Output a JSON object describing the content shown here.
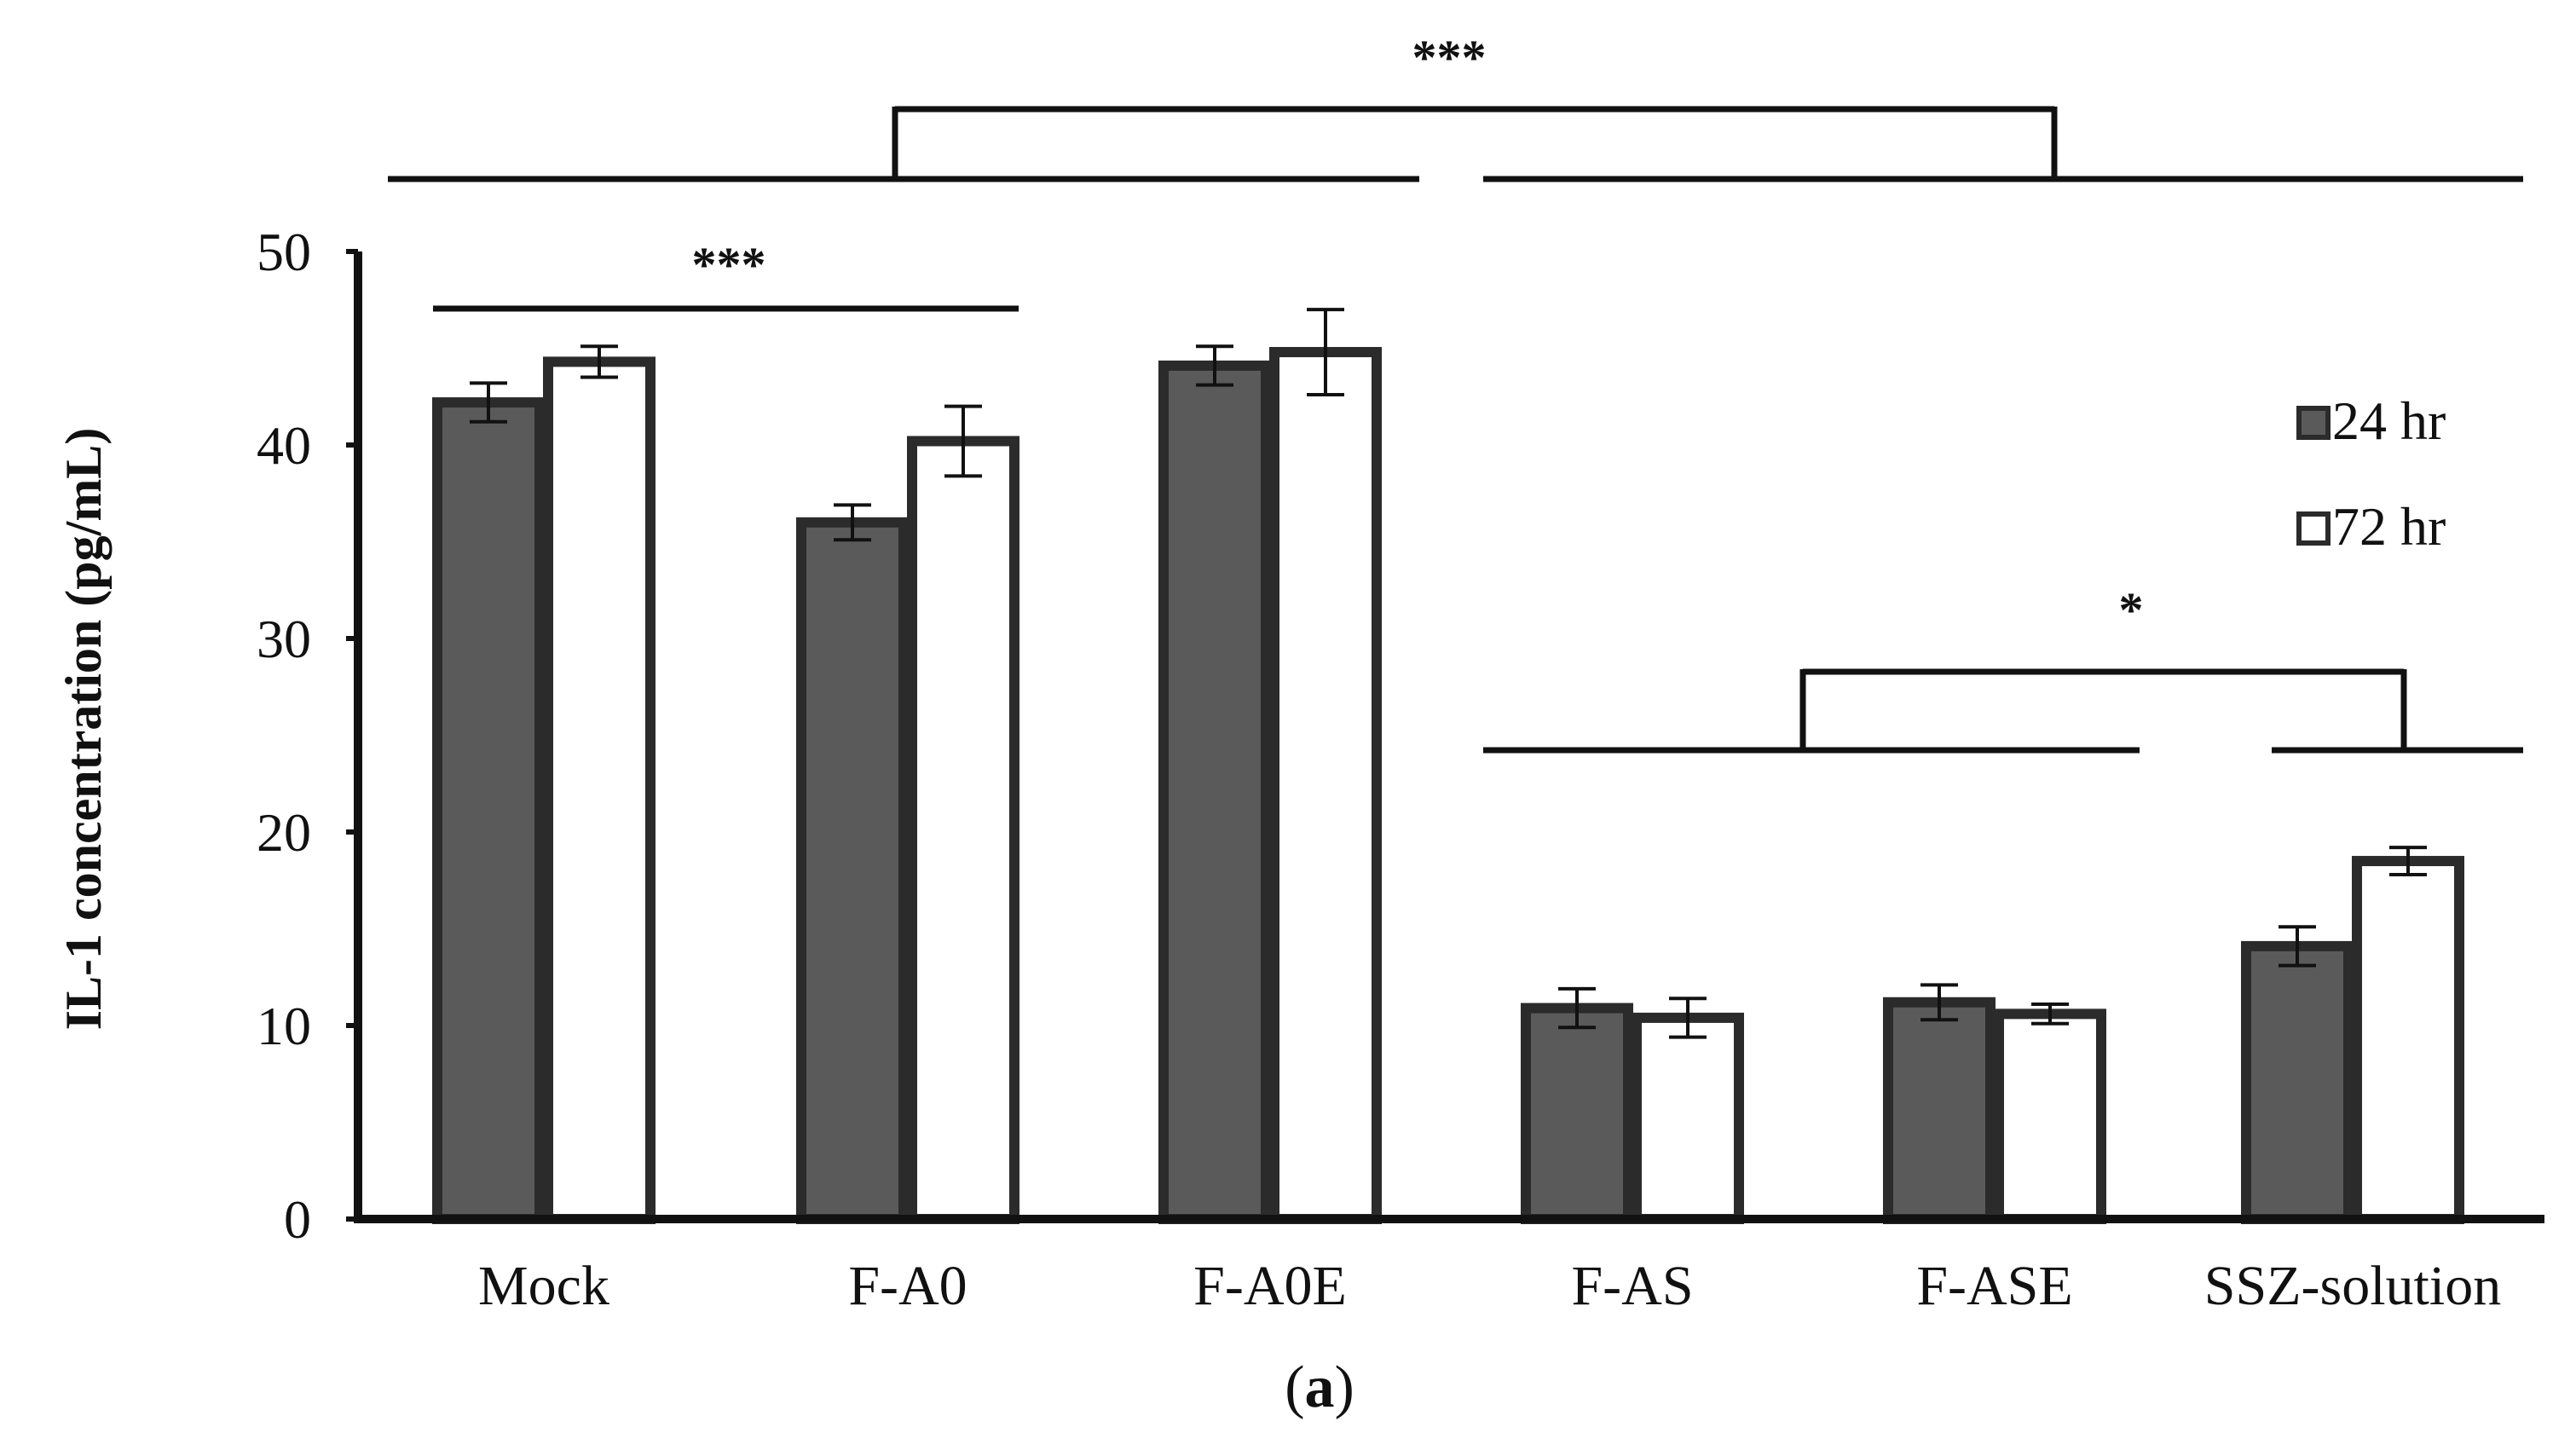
{
  "chart_data": {
    "type": "bar",
    "title": "",
    "panel_label": "a",
    "ylabel": "IL-1 concentration (pg/mL)",
    "xlabel": "",
    "ylim": [
      0,
      50
    ],
    "yticks": [
      0,
      10,
      20,
      30,
      40,
      50
    ],
    "categories": [
      "Mock",
      "F-A0",
      "F-A0E",
      "F-AS",
      "F-ASE",
      "SSZ-solution"
    ],
    "series": [
      {
        "name": "24 hr",
        "color": "#5a5a5a",
        "values": [
          42.2,
          36.0,
          44.1,
          10.9,
          11.2,
          14.1
        ],
        "errors": [
          1.0,
          0.9,
          1.0,
          1.0,
          0.9,
          1.0
        ]
      },
      {
        "name": "72 hr",
        "color": "#ffffff",
        "values": [
          44.3,
          40.2,
          44.8,
          10.4,
          10.6,
          18.5
        ],
        "errors": [
          0.8,
          1.8,
          2.2,
          1.0,
          0.5,
          0.7
        ]
      }
    ],
    "legend_position": "top-right",
    "significance": [
      {
        "label": "***",
        "groups": "Mock, F-A0, F-A0E vs F-AS, F-ASE, SSZ-solution"
      },
      {
        "label": "***",
        "groups": "Mock vs F-A0"
      },
      {
        "label": "*",
        "groups": "F-AS, F-ASE vs SSZ-solution"
      }
    ]
  },
  "colors": {
    "axis": "#111111",
    "bar_outline": "#2b2b2b"
  }
}
